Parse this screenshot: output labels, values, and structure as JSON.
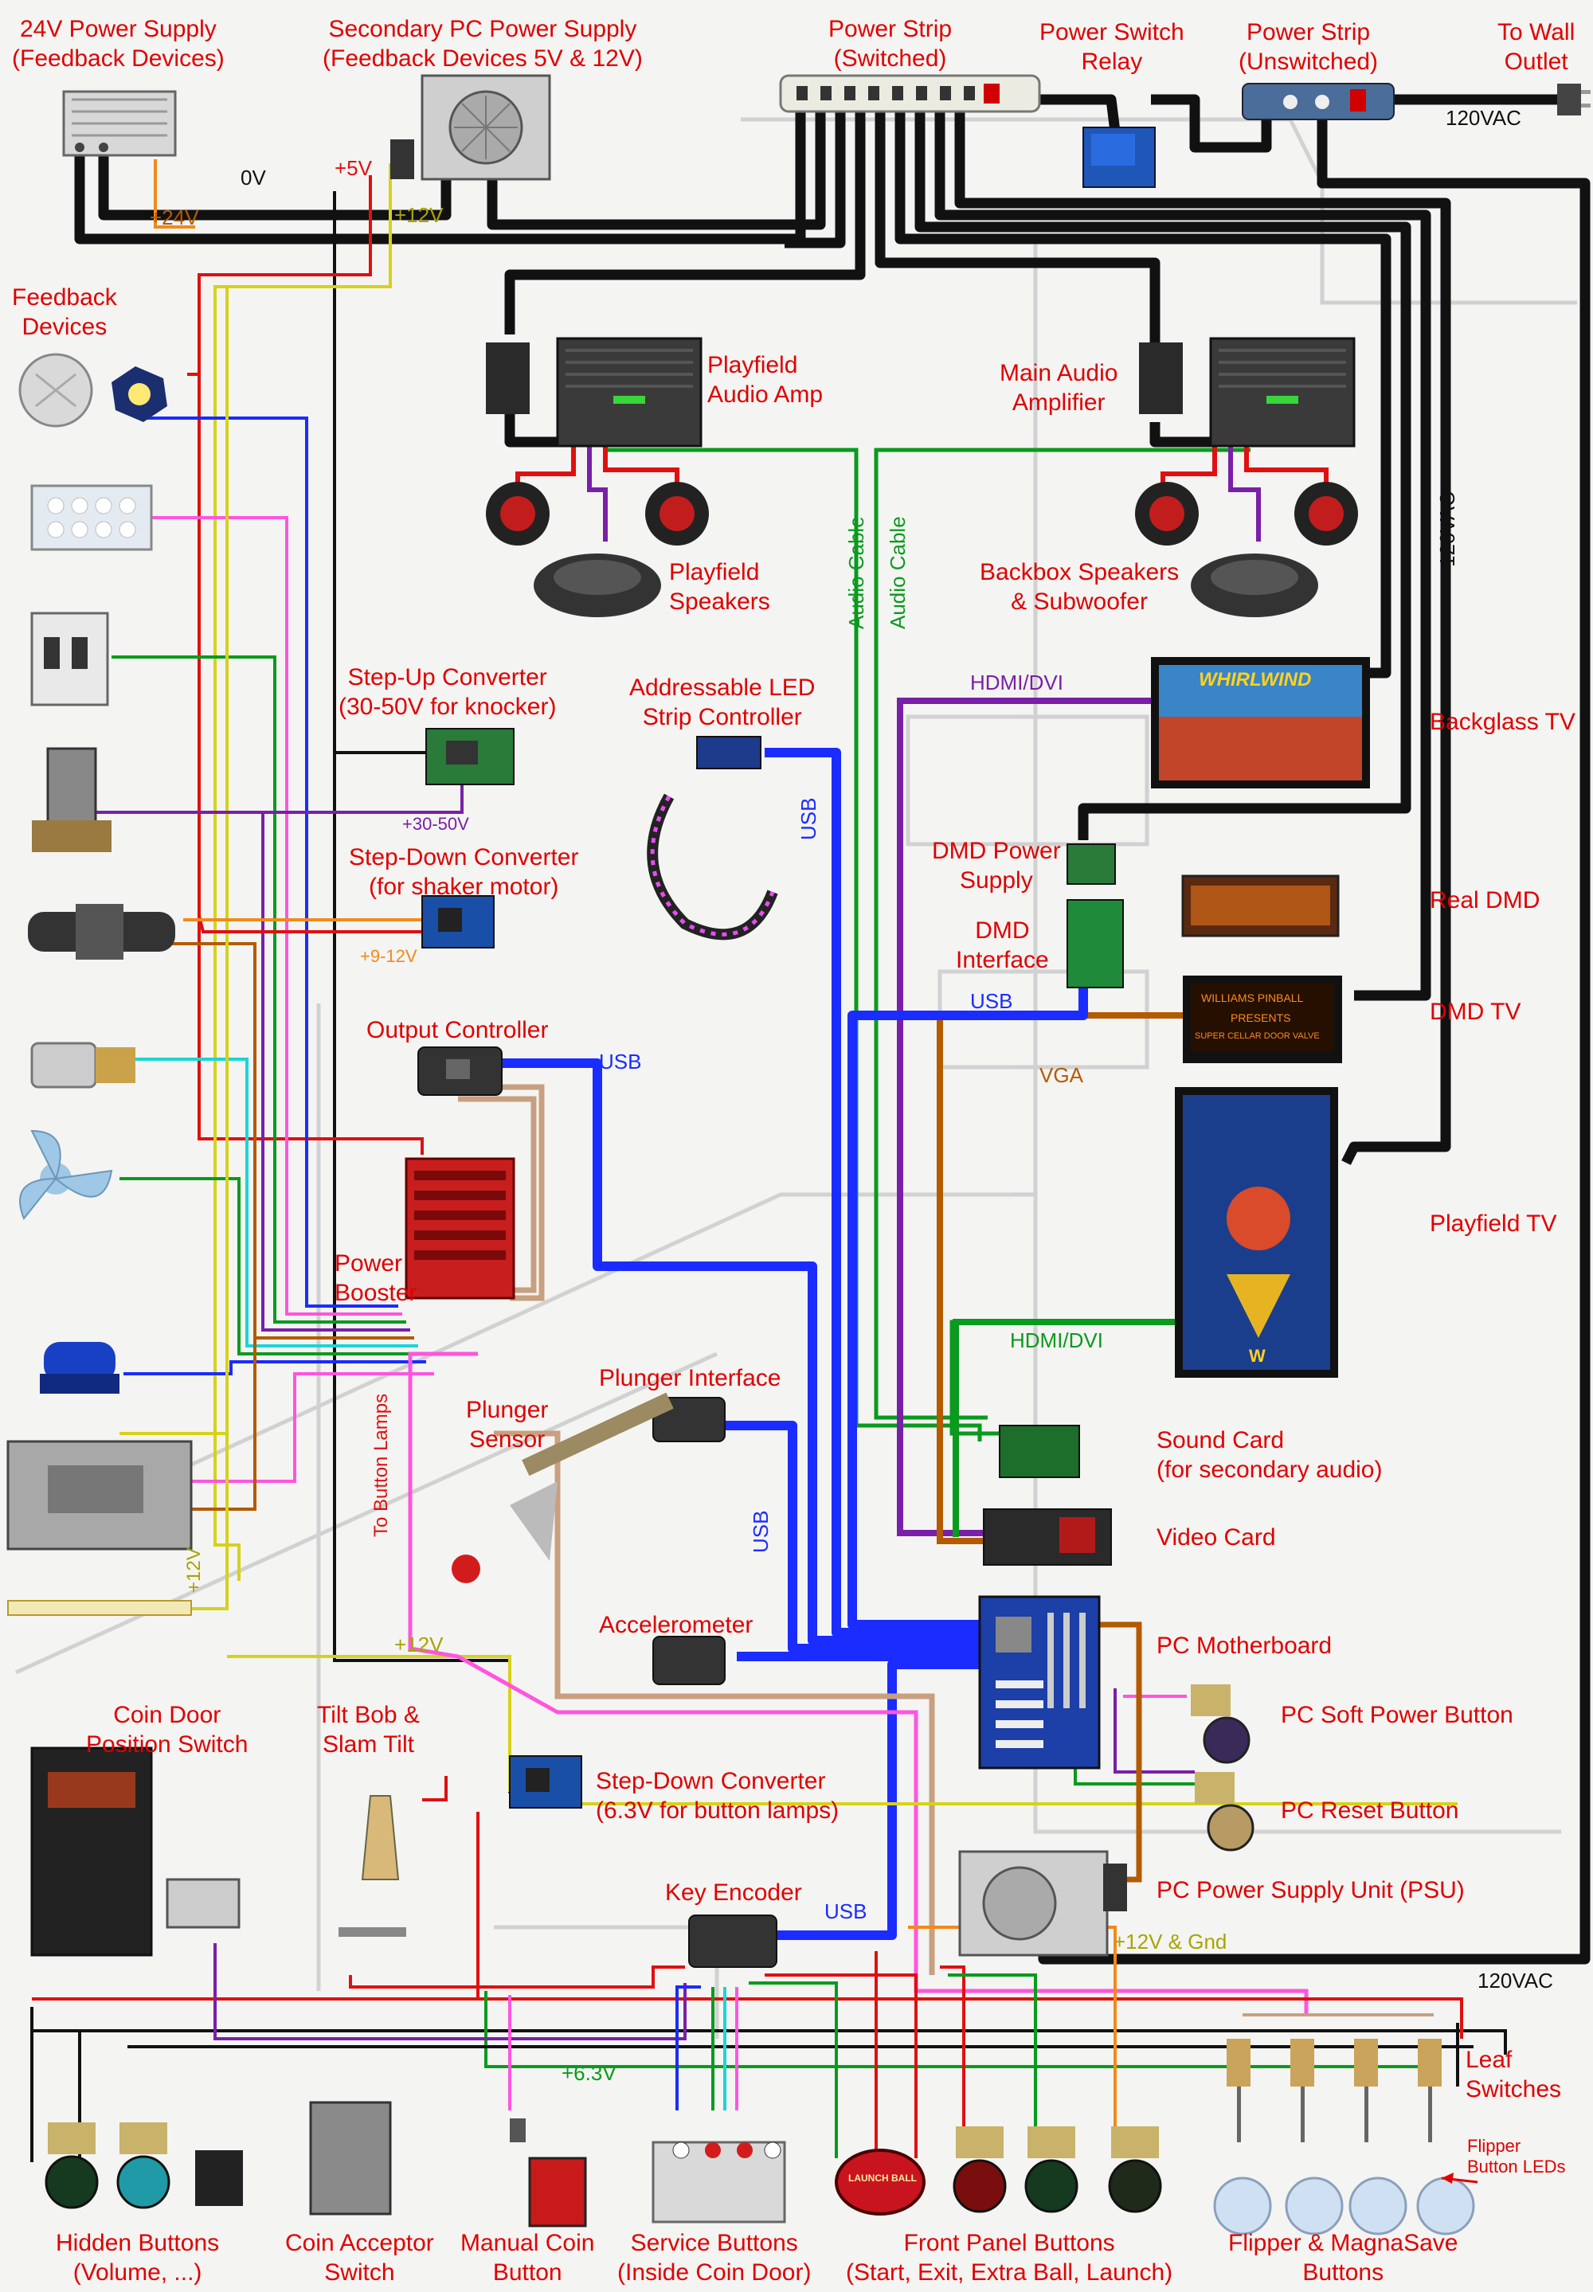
{
  "colors": {
    "label_red": "#e00000",
    "wire_black": "#111111",
    "wire_usb": "#1a2cff",
    "wire_green": "#0a9a1e",
    "wire_purple": "#7a1fa8",
    "wire_brown": "#b45a00",
    "wire_orange": "#f08a1c",
    "wire_yellow": "#d6d21a",
    "wire_red": "#e01010",
    "wire_pink": "#ff55dd",
    "wire_cyan": "#1ad6d6",
    "wire_tan": "#c8a080"
  },
  "components": {
    "psu24": "24V Power Supply\n(Feedback Devices)",
    "psu_secondary": "Secondary PC Power Supply\n(Feedback Devices 5V & 12V)",
    "strip_switched": "Power Strip\n(Switched)",
    "relay": "Power Switch\nRelay",
    "strip_unswitched": "Power Strip\n(Unswitched)",
    "wall": "To Wall\nOutlet",
    "feedback": "Feedback\nDevices",
    "pf_amp": "Playfield\nAudio Amp",
    "main_amp": "Main Audio\nAmplifier",
    "pf_speakers": "Playfield\nSpeakers",
    "bb_speakers": "Backbox Speakers\n& Subwoofer",
    "stepup": "Step-Up Converter\n(30-50V for knocker)",
    "stepdown_shaker": "Step-Down Converter\n(for shaker motor)",
    "led_ctrl": "Addressable LED\nStrip Controller",
    "dmd_psu": "DMD Power\nSupply",
    "dmd_iface": "DMD\nInterface",
    "backglass": "Backglass TV",
    "real_dmd": "Real DMD",
    "dmd_tv": "DMD TV",
    "playfield_tv": "Playfield TV",
    "output_ctrl": "Output Controller",
    "power_booster": "Power\nBooster",
    "plunger_iface": "Plunger Interface",
    "plunger_sensor": "Plunger\nSensor",
    "sound_card": "Sound Card\n(for secondary audio)",
    "video_card": "Video Card",
    "accelerometer": "Accelerometer",
    "motherboard": "PC Motherboard",
    "soft_power": "PC Soft Power Button",
    "reset": "PC Reset Button",
    "pc_psu": "PC Power Supply Unit (PSU)",
    "coin_door": "Coin Door\nPosition Switch",
    "tilt": "Tilt Bob &\nSlam Tilt",
    "stepdown_lamps": "Step-Down Converter\n(6.3V for button lamps)",
    "key_encoder": "Key Encoder",
    "leaf": "Leaf\nSwitches",
    "flipper_leds": "Flipper\nButton LEDs",
    "hidden_buttons": "Hidden Buttons\n(Volume,  ...)",
    "coin_acceptor": "Coin Acceptor\nSwitch",
    "manual_coin": "Manual Coin\nButton",
    "service_buttons": "Service Buttons\n(Inside Coin Door)",
    "front_panel": "Front Panel Buttons\n(Start, Exit, Extra Ball, Launch)",
    "flipper_buttons": "Flipper & MagnaSave\nButtons"
  },
  "wire_labels": {
    "v0": "0V",
    "v5": "+5V",
    "v24": "+24V",
    "v12_top": "+12V",
    "v120_top": "120VAC",
    "v120_right": "120VAC",
    "v120_bottom": "120VAC",
    "audio1": "Audio Cable",
    "audio2": "Audio Cable",
    "hdmi1": "HDMI/DVI",
    "hdmi2": "HDMI/DVI",
    "usb_led": "USB",
    "usb_dmd": "USB",
    "usb_out": "USB",
    "usb_plunger": "USB",
    "usb_key": "USB",
    "vga": "VGA",
    "v3050": "+30-50V",
    "v912": "+9-12V",
    "to_button_lamps": "To Button Lamps",
    "v12_left": "+12V",
    "v12_mid": "+12V",
    "v63": "+6.3V",
    "v12gnd": "+12V & Gnd"
  },
  "screens": {
    "backglass_title": "WHIRLWIND",
    "dmd_line1": "WILLIAMS PINBALL",
    "dmd_line2": "PRESENTS",
    "dmd_line3": "SUPER CELLAR DOOR VALVE",
    "playfield_logo": "W",
    "launch_label": "LAUNCH BALL"
  }
}
